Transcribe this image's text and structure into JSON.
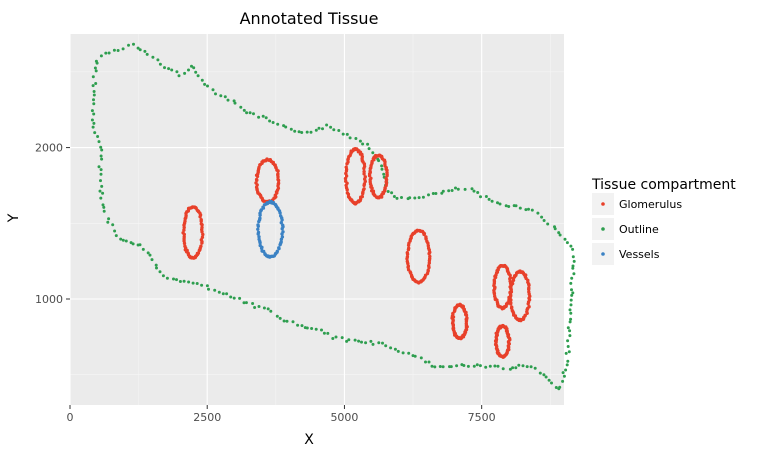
{
  "chart_data": {
    "type": "scatter",
    "title": "Annotated Tissue",
    "xlabel": "X",
    "ylabel": "Y",
    "xlim": [
      0,
      9000
    ],
    "ylim": [
      300,
      2750
    ],
    "xticks": [
      0,
      2500,
      5000,
      7500
    ],
    "xtick_labels": [
      "0",
      "2500",
      "5000",
      "7500"
    ],
    "yticks": [
      1000,
      2000
    ],
    "ytick_labels": [
      "1000",
      "2000"
    ],
    "grid": true,
    "legend": {
      "title": "Tissue compartment",
      "placement": "right",
      "entries": [
        "Glomerulus",
        "Outline",
        "Vessels"
      ]
    },
    "colors": {
      "Glomerulus": "#e8402a",
      "Outline": "#2e9e4f",
      "Vessels": "#3b82c4",
      "panel": "#ebebeb"
    },
    "series": [
      {
        "name": "Outline",
        "shape": "polyline",
        "points": [
          [
            450,
            2100
          ],
          [
            420,
            2250
          ],
          [
            440,
            2400
          ],
          [
            450,
            2500
          ],
          [
            500,
            2580
          ],
          [
            650,
            2620
          ],
          [
            900,
            2650
          ],
          [
            1150,
            2680
          ],
          [
            1300,
            2640
          ],
          [
            1500,
            2600
          ],
          [
            1650,
            2550
          ],
          [
            1800,
            2520
          ],
          [
            2000,
            2480
          ],
          [
            2200,
            2540
          ],
          [
            2400,
            2450
          ],
          [
            2600,
            2380
          ],
          [
            2900,
            2320
          ],
          [
            3100,
            2270
          ],
          [
            3300,
            2220
          ],
          [
            3500,
            2200
          ],
          [
            3800,
            2150
          ],
          [
            4100,
            2100
          ],
          [
            4400,
            2110
          ],
          [
            4700,
            2140
          ],
          [
            4900,
            2110
          ],
          [
            5200,
            2060
          ],
          [
            5400,
            2020
          ],
          [
            5600,
            1930
          ],
          [
            5700,
            1830
          ],
          [
            5800,
            1720
          ],
          [
            5900,
            1670
          ],
          [
            6050,
            1660
          ],
          [
            6300,
            1670
          ],
          [
            6600,
            1690
          ],
          [
            6900,
            1710
          ],
          [
            7100,
            1730
          ],
          [
            7300,
            1720
          ],
          [
            7500,
            1680
          ],
          [
            7700,
            1640
          ],
          [
            8000,
            1620
          ],
          [
            8300,
            1600
          ],
          [
            8500,
            1570
          ],
          [
            8650,
            1520
          ],
          [
            8800,
            1480
          ],
          [
            9000,
            1400
          ],
          [
            9180,
            1320
          ],
          [
            9150,
            1100
          ],
          [
            9120,
            900
          ],
          [
            9100,
            750
          ],
          [
            9050,
            600
          ],
          [
            9000,
            480
          ],
          [
            8900,
            400
          ],
          [
            8700,
            480
          ],
          [
            8500,
            540
          ],
          [
            8200,
            560
          ],
          [
            8000,
            540
          ],
          [
            7800,
            550
          ],
          [
            7500,
            560
          ],
          [
            7200,
            560
          ],
          [
            6900,
            550
          ],
          [
            6600,
            560
          ],
          [
            6300,
            620
          ],
          [
            6000,
            660
          ],
          [
            5700,
            700
          ],
          [
            5400,
            720
          ],
          [
            5100,
            720
          ],
          [
            4800,
            750
          ],
          [
            4500,
            800
          ],
          [
            4200,
            820
          ],
          [
            3900,
            860
          ],
          [
            3600,
            930
          ],
          [
            3300,
            960
          ],
          [
            3000,
            1010
          ],
          [
            2700,
            1050
          ],
          [
            2400,
            1090
          ],
          [
            2100,
            1110
          ],
          [
            1800,
            1130
          ],
          [
            1650,
            1180
          ],
          [
            1500,
            1260
          ],
          [
            1300,
            1350
          ],
          [
            1100,
            1380
          ],
          [
            900,
            1400
          ],
          [
            750,
            1480
          ],
          [
            600,
            1600
          ],
          [
            560,
            1750
          ],
          [
            550,
            1880
          ],
          [
            600,
            1980
          ],
          [
            450,
            2100
          ]
        ]
      },
      {
        "name": "Glomerulus",
        "shape": "ellipse",
        "ellipses": [
          {
            "cx": 2240,
            "cy": 1440,
            "rx": 170,
            "ry": 170
          },
          {
            "cx": 3600,
            "cy": 1780,
            "rx": 200,
            "ry": 140
          },
          {
            "cx": 5200,
            "cy": 1810,
            "rx": 170,
            "ry": 180
          },
          {
            "cx": 5620,
            "cy": 1810,
            "rx": 150,
            "ry": 140
          },
          {
            "cx": 6350,
            "cy": 1280,
            "rx": 200,
            "ry": 170
          },
          {
            "cx": 7100,
            "cy": 850,
            "rx": 130,
            "ry": 110
          },
          {
            "cx": 7880,
            "cy": 1080,
            "rx": 150,
            "ry": 140
          },
          {
            "cx": 8200,
            "cy": 1020,
            "rx": 170,
            "ry": 160
          },
          {
            "cx": 7880,
            "cy": 720,
            "rx": 120,
            "ry": 100
          }
        ]
      },
      {
        "name": "Vessels",
        "shape": "ellipse",
        "ellipses": [
          {
            "cx": 3650,
            "cy": 1460,
            "rx": 220,
            "ry": 180
          }
        ]
      }
    ]
  }
}
